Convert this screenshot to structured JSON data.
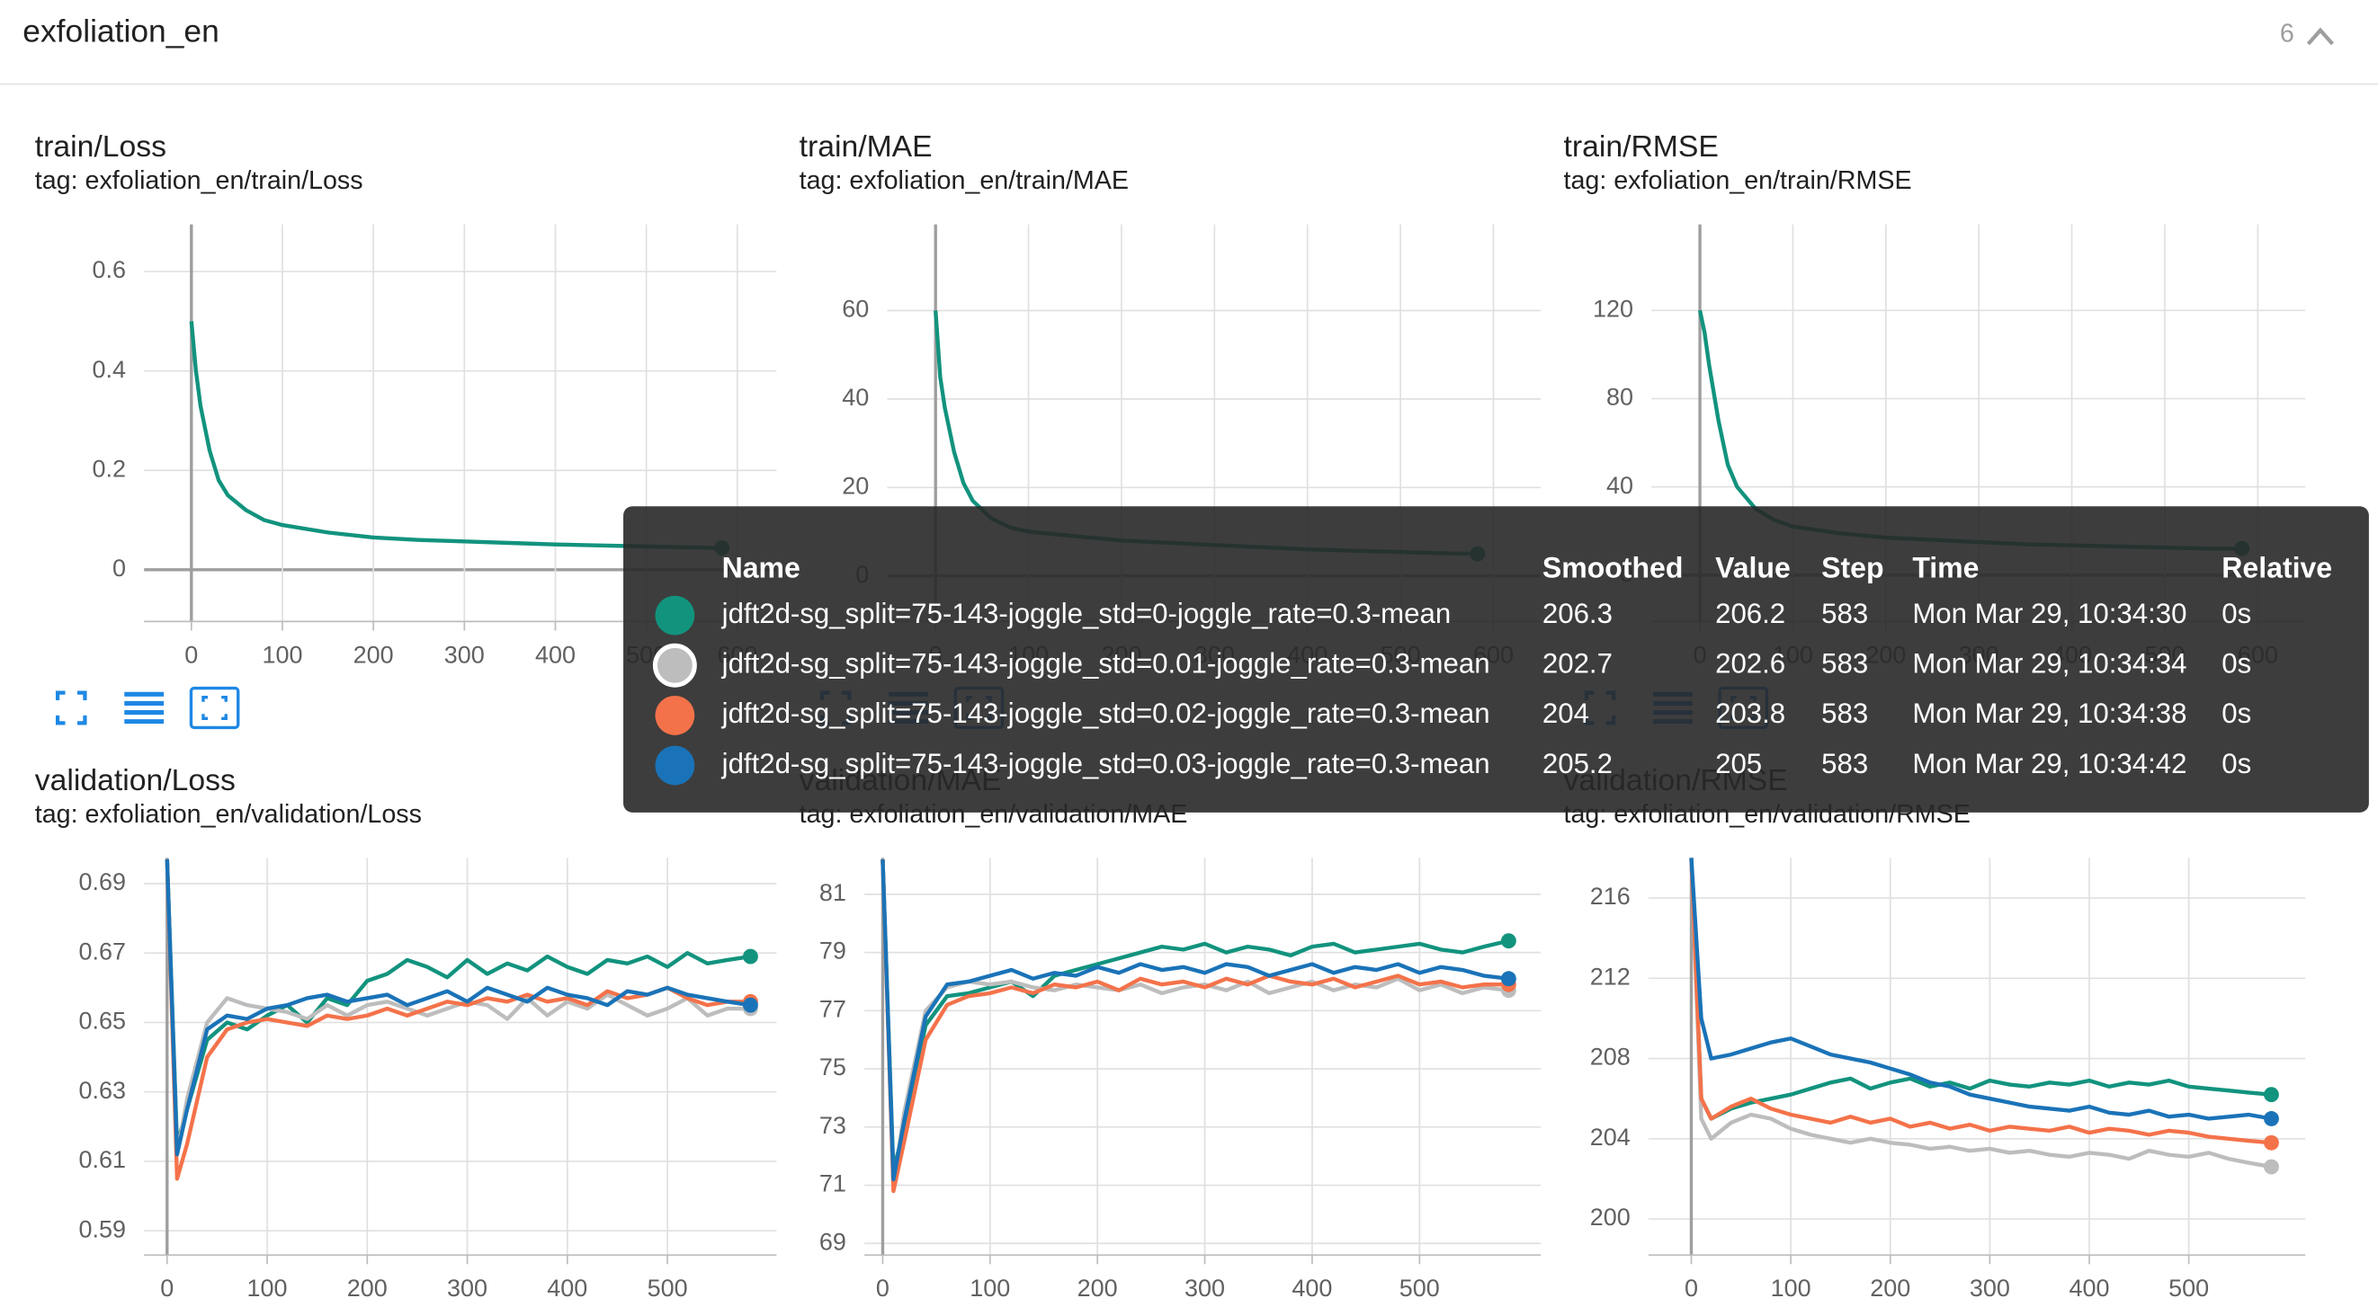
{
  "header": {
    "title": "exfoliation_en",
    "count": 6
  },
  "chart_data": [
    {
      "type": "line",
      "title": "train/Loss",
      "subtitle": "tag: exfoliation_en/train/Loss",
      "x": [
        0,
        5,
        10,
        20,
        30,
        40,
        60,
        80,
        100,
        150,
        200,
        250,
        300,
        350,
        400,
        450,
        500,
        550,
        583
      ],
      "series": [
        {
          "color": "#12937e",
          "values": [
            0.5,
            0.4,
            0.33,
            0.24,
            0.18,
            0.15,
            0.12,
            0.1,
            0.09,
            0.075,
            0.065,
            0.06,
            0.057,
            0.054,
            0.051,
            0.049,
            0.047,
            0.045,
            0.044
          ]
        }
      ],
      "xlim": [
        -52,
        643
      ],
      "ylim": [
        -0.104,
        0.695
      ],
      "xticks": [
        0,
        100,
        200,
        300,
        400,
        500,
        600
      ],
      "yticks": [
        0,
        0.2,
        0.4,
        0.6
      ],
      "grid": true
    },
    {
      "type": "line",
      "title": "train/MAE",
      "subtitle": "tag: exfoliation_en/train/MAE",
      "x": [
        0,
        5,
        10,
        20,
        30,
        40,
        60,
        80,
        100,
        150,
        200,
        250,
        300,
        350,
        400,
        450,
        500,
        550,
        583
      ],
      "series": [
        {
          "color": "#12937e",
          "values": [
            60,
            45,
            38,
            28,
            21,
            17,
            13,
            11,
            10,
            9,
            8,
            7.5,
            7,
            6.5,
            6,
            5.7,
            5.4,
            5.1,
            5
          ]
        }
      ],
      "xlim": [
        -52,
        651
      ],
      "ylim": [
        -10.3,
        79.5
      ],
      "xticks": [
        0,
        100,
        200,
        300,
        400,
        500,
        600
      ],
      "yticks": [
        0,
        20,
        40,
        60
      ],
      "grid": true
    },
    {
      "type": "line",
      "title": "train/RMSE",
      "subtitle": "tag: exfoliation_en/train/RMSE",
      "x": [
        0,
        5,
        10,
        20,
        30,
        40,
        60,
        80,
        100,
        150,
        200,
        250,
        300,
        350,
        400,
        450,
        500,
        550,
        583
      ],
      "series": [
        {
          "color": "#12937e",
          "values": [
            120,
            110,
            95,
            70,
            50,
            40,
            30,
            25,
            22,
            19,
            17,
            16,
            15,
            14,
            13.5,
            13,
            12.5,
            12,
            12
          ]
        }
      ],
      "xlim": [
        -52,
        651
      ],
      "ylim": [
        -21,
        159
      ],
      "xticks": [
        0,
        100,
        200,
        300,
        400,
        500,
        600
      ],
      "yticks": [
        0,
        40,
        80,
        120
      ],
      "grid": true
    },
    {
      "type": "line",
      "title": "validation/Loss",
      "subtitle": "tag: exfoliation_en/validation/Loss",
      "x": [
        0,
        10,
        20,
        40,
        60,
        80,
        100,
        120,
        140,
        160,
        180,
        200,
        220,
        240,
        260,
        280,
        300,
        320,
        340,
        360,
        380,
        400,
        420,
        440,
        460,
        480,
        500,
        520,
        540,
        560,
        583
      ],
      "series": [
        {
          "color": "#12937e",
          "values": [
            0.697,
            0.615,
            0.625,
            0.645,
            0.65,
            0.648,
            0.652,
            0.655,
            0.65,
            0.657,
            0.655,
            0.662,
            0.664,
            0.668,
            0.666,
            0.663,
            0.668,
            0.664,
            0.667,
            0.665,
            0.669,
            0.666,
            0.664,
            0.668,
            0.667,
            0.669,
            0.666,
            0.67,
            0.667,
            0.668,
            0.669
          ]
        },
        {
          "color": "#bdbdbd",
          "values": [
            0.697,
            0.612,
            0.628,
            0.65,
            0.657,
            0.655,
            0.654,
            0.653,
            0.651,
            0.655,
            0.652,
            0.655,
            0.656,
            0.654,
            0.652,
            0.654,
            0.656,
            0.655,
            0.651,
            0.657,
            0.652,
            0.656,
            0.654,
            0.658,
            0.655,
            0.652,
            0.654,
            0.657,
            0.652,
            0.654,
            0.654
          ]
        },
        {
          "color": "#f4724a",
          "values": [
            0.697,
            0.605,
            0.615,
            0.64,
            0.648,
            0.65,
            0.651,
            0.65,
            0.649,
            0.652,
            0.651,
            0.652,
            0.654,
            0.652,
            0.654,
            0.656,
            0.655,
            0.657,
            0.656,
            0.658,
            0.656,
            0.657,
            0.655,
            0.659,
            0.657,
            0.658,
            0.66,
            0.657,
            0.655,
            0.656,
            0.656
          ]
        },
        {
          "color": "#1a73b8",
          "values": [
            0.697,
            0.612,
            0.625,
            0.648,
            0.652,
            0.651,
            0.654,
            0.655,
            0.657,
            0.658,
            0.656,
            0.657,
            0.658,
            0.655,
            0.657,
            0.659,
            0.656,
            0.66,
            0.658,
            0.656,
            0.66,
            0.658,
            0.657,
            0.655,
            0.659,
            0.658,
            0.66,
            0.658,
            0.657,
            0.656,
            0.655
          ]
        }
      ],
      "xlim": [
        -23,
        609
      ],
      "ylim": [
        0.583,
        0.6974
      ],
      "xticks": [
        0,
        100,
        200,
        300,
        400,
        500
      ],
      "yticks": [
        0.59,
        0.61,
        0.63,
        0.65,
        0.67,
        0.69
      ],
      "grid": true
    },
    {
      "type": "line",
      "title": "validation/MAE",
      "subtitle": "tag: exfoliation_en/validation/MAE",
      "x": [
        0,
        10,
        20,
        40,
        60,
        80,
        100,
        120,
        140,
        160,
        180,
        200,
        220,
        240,
        260,
        280,
        300,
        320,
        340,
        360,
        380,
        400,
        420,
        440,
        460,
        480,
        500,
        520,
        540,
        560,
        583
      ],
      "series": [
        {
          "color": "#12937e",
          "values": [
            82.2,
            71.5,
            73,
            76.5,
            77.5,
            77.6,
            77.8,
            78,
            77.5,
            78.2,
            78.4,
            78.6,
            78.8,
            79,
            79.2,
            79.1,
            79.3,
            79,
            79.2,
            79.1,
            78.9,
            79.2,
            79.3,
            79,
            79.1,
            79.2,
            79.3,
            79.1,
            79,
            79.2,
            79.4
          ]
        },
        {
          "color": "#bdbdbd",
          "values": [
            82.2,
            71,
            73.5,
            77,
            77.8,
            78,
            77.9,
            78,
            77.8,
            77.7,
            77.9,
            77.8,
            77.7,
            77.9,
            77.6,
            77.8,
            77.9,
            77.7,
            78,
            77.6,
            77.8,
            78,
            77.7,
            77.9,
            77.8,
            78.1,
            77.7,
            77.9,
            77.6,
            77.8,
            77.7
          ]
        },
        {
          "color": "#f4724a",
          "values": [
            82.2,
            70.8,
            72.5,
            76,
            77.2,
            77.5,
            77.6,
            77.8,
            77.6,
            77.9,
            77.8,
            78,
            77.7,
            78.1,
            77.9,
            78,
            77.8,
            78.1,
            77.9,
            78.2,
            78,
            77.9,
            78.1,
            77.8,
            78,
            78.2,
            77.9,
            78,
            77.8,
            77.9,
            77.9
          ]
        },
        {
          "color": "#1a73b8",
          "values": [
            82.2,
            71.2,
            73.2,
            76.8,
            77.9,
            78,
            78.2,
            78.4,
            78.1,
            78.3,
            78.2,
            78.5,
            78.3,
            78.6,
            78.4,
            78.5,
            78.3,
            78.6,
            78.5,
            78.2,
            78.4,
            78.6,
            78.3,
            78.5,
            78.4,
            78.6,
            78.3,
            78.5,
            78.4,
            78.2,
            78.1
          ]
        }
      ],
      "xlim": [
        -17,
        613
      ],
      "ylim": [
        68.6,
        82.25
      ],
      "xticks": [
        0,
        100,
        200,
        300,
        400,
        500
      ],
      "yticks": [
        69,
        71,
        73,
        75,
        77,
        79,
        81
      ],
      "grid": true
    },
    {
      "type": "line",
      "title": "validation/RMSE",
      "subtitle": "tag: exfoliation_en/validation/RMSE",
      "x": [
        0,
        10,
        20,
        40,
        60,
        80,
        100,
        120,
        140,
        160,
        180,
        200,
        220,
        240,
        260,
        280,
        300,
        320,
        340,
        360,
        380,
        400,
        420,
        440,
        460,
        480,
        500,
        520,
        540,
        560,
        583
      ],
      "series": [
        {
          "color": "#12937e",
          "values": [
            218,
            206,
            205,
            205.5,
            205.8,
            206,
            206.2,
            206.5,
            206.8,
            207,
            206.5,
            206.8,
            207,
            206.6,
            206.8,
            206.5,
            206.9,
            206.7,
            206.6,
            206.8,
            206.7,
            206.9,
            206.6,
            206.8,
            206.7,
            206.9,
            206.6,
            206.5,
            206.4,
            206.3,
            206.2
          ]
        },
        {
          "color": "#bdbdbd",
          "values": [
            218,
            205,
            204,
            204.8,
            205.2,
            205,
            204.5,
            204.2,
            204,
            203.8,
            204,
            203.8,
            203.7,
            203.5,
            203.6,
            203.4,
            203.5,
            203.3,
            203.4,
            203.2,
            203.1,
            203.3,
            203.2,
            203,
            203.4,
            203.2,
            203.1,
            203.3,
            203,
            202.8,
            202.6
          ]
        },
        {
          "color": "#f4724a",
          "values": [
            218,
            206,
            205,
            205.6,
            206,
            205.5,
            205.2,
            205,
            204.8,
            205.1,
            204.8,
            205,
            204.6,
            204.8,
            204.5,
            204.7,
            204.4,
            204.6,
            204.5,
            204.4,
            204.6,
            204.3,
            204.5,
            204.4,
            204.2,
            204.4,
            204.3,
            204.1,
            204,
            203.9,
            203.8
          ]
        },
        {
          "color": "#1a73b8",
          "values": [
            218,
            210,
            208,
            208.2,
            208.5,
            208.8,
            209,
            208.6,
            208.2,
            208,
            207.8,
            207.5,
            207.2,
            206.8,
            206.6,
            206.2,
            206,
            205.8,
            205.6,
            205.5,
            205.4,
            205.6,
            205.3,
            205.2,
            205.4,
            205.1,
            205.2,
            205,
            205.1,
            205.2,
            205
          ]
        }
      ],
      "xlim": [
        -43,
        617
      ],
      "ylim": [
        198.2,
        218
      ],
      "xticks": [
        0,
        100,
        200,
        300,
        400,
        500
      ],
      "yticks": [
        200,
        204,
        208,
        212,
        216
      ],
      "grid": true
    }
  ],
  "tooltip": {
    "columns": [
      "Name",
      "Smoothed",
      "Value",
      "Step",
      "Time",
      "Relative"
    ],
    "rows": [
      {
        "color": "#12937e",
        "name": "jdft2d-sg_split=75-143-joggle_std=0-joggle_rate=0.3-mean",
        "smoothed": 206.3,
        "value": 206.2,
        "step": 583,
        "time": "Mon Mar 29, 10:34:30",
        "relative": "0s"
      },
      {
        "color": "#bdbdbd",
        "name": "jdft2d-sg_split=75-143-joggle_std=0.01-joggle_rate=0.3-mean",
        "smoothed": 202.7,
        "value": 202.6,
        "step": 583,
        "time": "Mon Mar 29, 10:34:34",
        "relative": "0s"
      },
      {
        "color": "#f4724a",
        "name": "jdft2d-sg_split=75-143-joggle_std=0.02-joggle_rate=0.3-mean",
        "smoothed": 204,
        "value": 203.8,
        "step": 583,
        "time": "Mon Mar 29, 10:34:38",
        "relative": "0s"
      },
      {
        "color": "#1a73b8",
        "name": "jdft2d-sg_split=75-143-joggle_std=0.03-joggle_rate=0.3-mean",
        "smoothed": 205.2,
        "value": 205,
        "step": 583,
        "time": "Mon Mar 29, 10:34:42",
        "relative": "0s"
      }
    ]
  }
}
